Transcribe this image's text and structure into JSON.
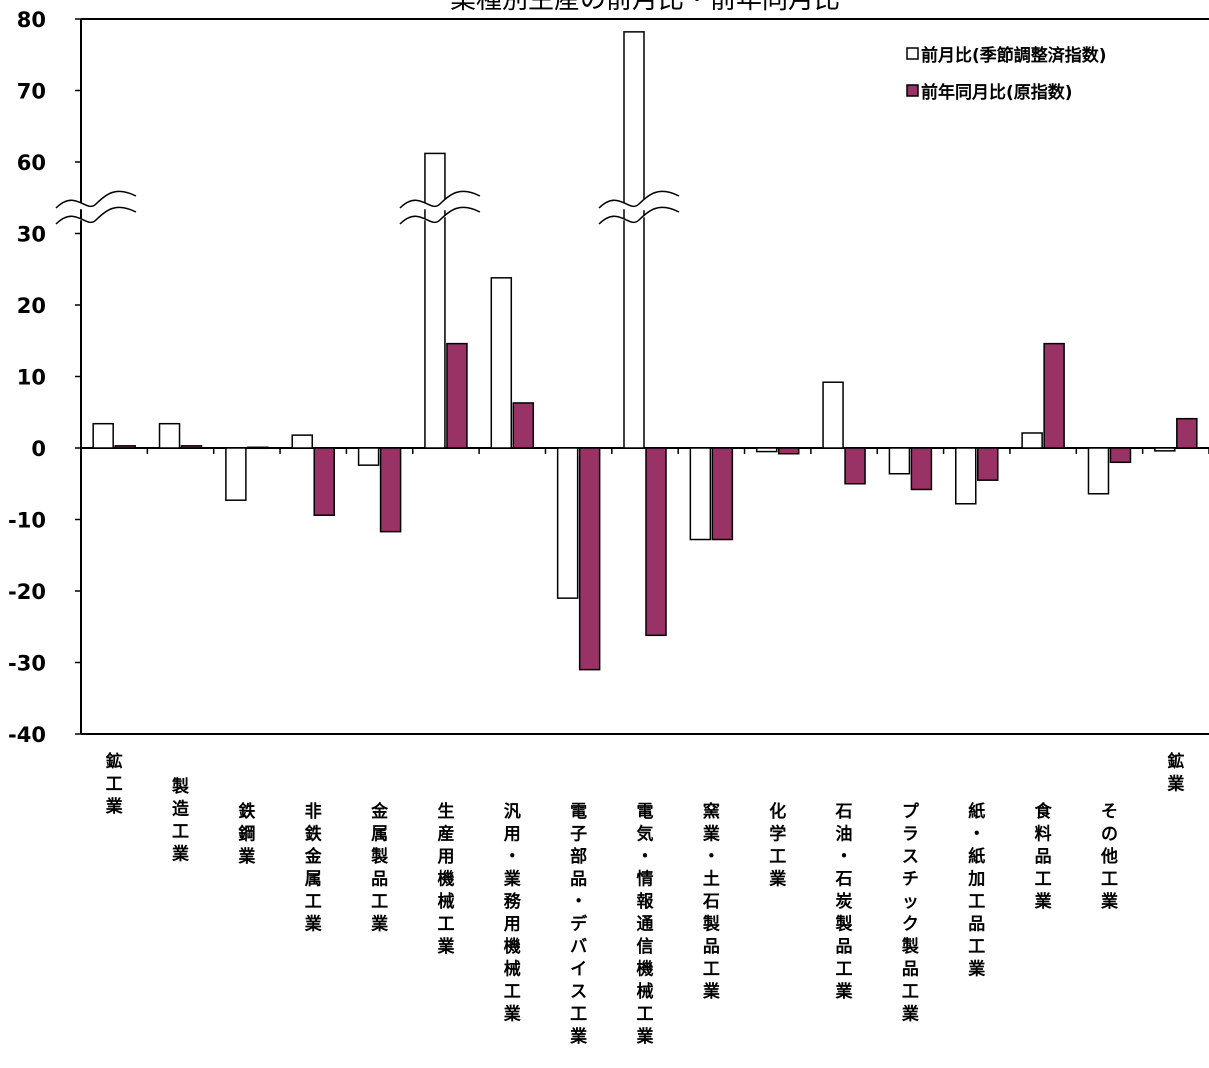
{
  "chart_data": {
    "type": "bar",
    "title": "業種別生産の前月比・前年同月比",
    "xlabel": "",
    "ylabel": "",
    "ylim": [
      -40,
      80
    ],
    "axis_break": {
      "from": 30,
      "to": 60
    },
    "yticks": [
      "80",
      "70",
      "60",
      "30",
      "20",
      "10",
      "0",
      "-10",
      "-20",
      "-30",
      "-40"
    ],
    "legend_position": "top-right",
    "categories": [
      "鉱工業",
      "製造工業",
      "鉄鋼業",
      "非鉄金属工業",
      "金属製品工業",
      "生産用機械工業",
      "汎用・業務用機械工業",
      "電子部品・デバイス工業",
      "電気・情報通信機械工業",
      "窯業・土石製品工業",
      "化学工業",
      "石油・石炭製品工業",
      "プラスチック製品工業",
      "紙・紙加工品工業",
      "食料品工業",
      "その他工業",
      "鉱業"
    ],
    "series": [
      {
        "name": "前月比(季節調整済指数)",
        "color": "#ffffff",
        "values": [
          3.4,
          3.4,
          -7.3,
          1.8,
          -2.4,
          61.2,
          23.8,
          -21.0,
          78.2,
          -12.8,
          -0.5,
          9.2,
          -3.6,
          -7.8,
          2.1,
          -6.4,
          -0.4
        ]
      },
      {
        "name": "前年同月比(原指数)",
        "color": "#993366",
        "values": [
          0.3,
          0.3,
          0.1,
          -9.4,
          -11.7,
          14.6,
          6.3,
          -31.0,
          -26.2,
          -12.8,
          -0.8,
          -5.0,
          -5.8,
          -4.5,
          14.6,
          -2.0,
          4.1
        ]
      }
    ]
  }
}
